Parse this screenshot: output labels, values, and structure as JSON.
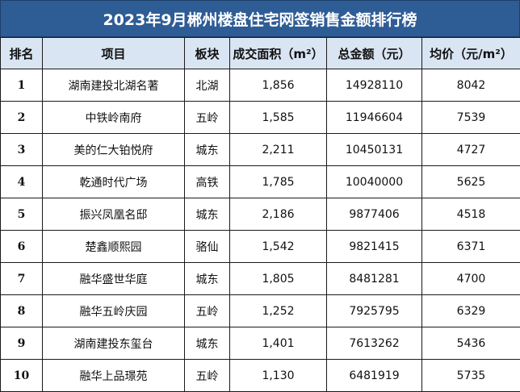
{
  "title": "2023年9月郴州楼盘住宅网签销售金额排行榜",
  "headers": [
    "排名",
    "项目",
    "板块",
    "成交面积（m²）",
    "总金额（元）",
    "均价（元/m²）"
  ],
  "rows": [
    {
      "rank": "1",
      "project": "湖南建投北湖名著",
      "area_zone": "北湖",
      "area": "1,856",
      "total": "14928110",
      "avg": "8042"
    },
    {
      "rank": "2",
      "project": "中铁岭南府",
      "area_zone": "五岭",
      "area": "1,585",
      "total": "11946604",
      "avg": "7539"
    },
    {
      "rank": "3",
      "project": "美的仁大铂悦府",
      "area_zone": "城东",
      "area": "2,211",
      "total": "10450131",
      "avg": "4727"
    },
    {
      "rank": "4",
      "project": "乾通时代广场",
      "area_zone": "高铁",
      "area": "1,785",
      "total": "10040000",
      "avg": "5625"
    },
    {
      "rank": "5",
      "project": "振兴凤凰名邸",
      "area_zone": "城东",
      "area": "2,186",
      "total": "9877406",
      "avg": "4518"
    },
    {
      "rank": "6",
      "project": "楚鑫顺熙园",
      "area_zone": "骆仙",
      "area": "1,542",
      "total": "9821415",
      "avg": "6371"
    },
    {
      "rank": "7",
      "project": "融华盛世华庭",
      "area_zone": "城东",
      "area": "1,805",
      "total": "8481281",
      "avg": "4700"
    },
    {
      "rank": "8",
      "project": "融华五岭庆园",
      "area_zone": "五岭",
      "area": "1,252",
      "total": "7925795",
      "avg": "6329"
    },
    {
      "rank": "9",
      "project": "湖南建投东玺台",
      "area_zone": "城东",
      "area": "1,401",
      "total": "7613262",
      "avg": "5436"
    },
    {
      "rank": "10",
      "project": "融华上品璟苑",
      "area_zone": "五岭",
      "area": "1,130",
      "total": "6481919",
      "avg": "5735"
    }
  ],
  "colors": {
    "title_bg": "#2e5c95",
    "header_bg": "#dae5f3",
    "border": "#1a1a1a"
  }
}
